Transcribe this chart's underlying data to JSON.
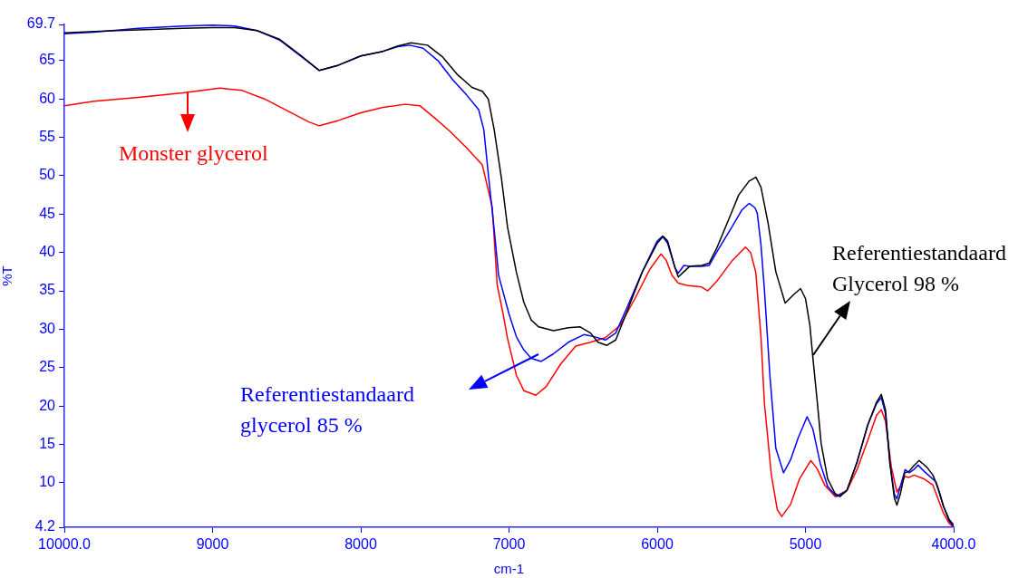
{
  "chart_data": {
    "type": "line",
    "xlabel": "cm-1",
    "ylabel": "%T",
    "xlim": [
      10000,
      4000
    ],
    "xticks": [
      {
        "value": 10000,
        "label": "10000.0"
      },
      9000,
      8000,
      7000,
      6000,
      5000,
      {
        "value": 4000,
        "label": "4000.0"
      }
    ],
    "ylim": [
      4.2,
      69.7
    ],
    "yticks": [
      4.2,
      10,
      15,
      20,
      25,
      30,
      35,
      40,
      45,
      50,
      55,
      60,
      65,
      69.7
    ],
    "series": [
      {
        "name": "Referentiestandaard Glycerol 98 %",
        "color": "#000000",
        "x": [
          10000,
          9800,
          9500,
          9200,
          9000,
          8850,
          8700,
          8550,
          8400,
          8280,
          8150,
          8000,
          7850,
          7750,
          7660,
          7550,
          7450,
          7350,
          7250,
          7180,
          7140,
          7100,
          7050,
          7010,
          6950,
          6900,
          6850,
          6800,
          6700,
          6600,
          6520,
          6450,
          6400,
          6340,
          6280,
          6200,
          6100,
          6000,
          5960,
          5930,
          5880,
          5858,
          5820,
          5780,
          5700,
          5650,
          5600,
          5509,
          5450,
          5380,
          5334,
          5300,
          5252,
          5200,
          5137,
          5080,
          5033,
          5000,
          4970,
          4952,
          4920,
          4894,
          4850,
          4800,
          4768,
          4720,
          4650,
          4580,
          4520,
          4488,
          4460,
          4430,
          4400,
          4383,
          4360,
          4330,
          4300,
          4270,
          4233,
          4180,
          4140,
          4100,
          4070,
          4030,
          4000
        ],
        "values": [
          68.6,
          68.8,
          69.0,
          69.2,
          69.3,
          69.3,
          68.9,
          67.8,
          65.6,
          63.7,
          64.4,
          65.6,
          66.2,
          66.9,
          67.3,
          67.0,
          65.5,
          63.2,
          61.5,
          61.0,
          60.0,
          56.0,
          49.5,
          43.3,
          37.4,
          33.5,
          31.2,
          30.3,
          29.8,
          30.2,
          30.3,
          29.5,
          28.3,
          27.9,
          28.6,
          32.5,
          37.5,
          41.2,
          42.1,
          41.5,
          38.0,
          36.8,
          37.5,
          38.2,
          38.3,
          38.6,
          40.5,
          44.7,
          47.5,
          49.3,
          49.8,
          48.5,
          43.8,
          37.5,
          33.4,
          34.5,
          35.3,
          34.0,
          30.5,
          26.7,
          20.5,
          15.1,
          10.5,
          8.6,
          8.2,
          9.0,
          12.8,
          17.5,
          20.5,
          21.5,
          19.5,
          12.5,
          8.0,
          7.1,
          8.5,
          11.3,
          11.5,
          12.2,
          12.9,
          12.0,
          11.0,
          9.0,
          7.0,
          5.2,
          4.5
        ]
      },
      {
        "name": "Referentiestandaard glycerol 85 %",
        "color": "#0000ff",
        "x": [
          10000,
          9800,
          9500,
          9200,
          9000,
          8850,
          8700,
          8550,
          8400,
          8280,
          8150,
          8000,
          7850,
          7750,
          7670,
          7580,
          7480,
          7380,
          7290,
          7205,
          7170,
          7137,
          7100,
          7070,
          7000,
          6950,
          6900,
          6850,
          6783,
          6700,
          6600,
          6495,
          6420,
          6350,
          6280,
          6200,
          6100,
          6000,
          5965,
          5930,
          5880,
          5858,
          5820,
          5780,
          5700,
          5650,
          5600,
          5500,
          5430,
          5380,
          5340,
          5325,
          5300,
          5277,
          5240,
          5200,
          5148,
          5100,
          5050,
          4989,
          4950,
          4900,
          4850,
          4789,
          4720,
          4650,
          4580,
          4520,
          4488,
          4460,
          4430,
          4400,
          4383,
          4360,
          4328,
          4300,
          4270,
          4240,
          4200,
          4119,
          4070,
          4030,
          4000
        ],
        "values": [
          68.5,
          68.7,
          69.2,
          69.5,
          69.6,
          69.5,
          68.9,
          67.7,
          65.5,
          63.7,
          64.4,
          65.6,
          66.2,
          66.8,
          67.0,
          66.6,
          65.0,
          62.5,
          60.6,
          58.6,
          56.0,
          49.7,
          43.0,
          37.0,
          32.0,
          29.0,
          27.3,
          26.2,
          25.8,
          26.8,
          28.3,
          29.3,
          29.0,
          28.6,
          29.5,
          33.0,
          37.5,
          41.5,
          42.1,
          41.2,
          38.0,
          37.3,
          38.3,
          38.2,
          38.2,
          38.3,
          40.0,
          43.2,
          45.5,
          46.4,
          45.8,
          45.1,
          41.0,
          35.2,
          24.0,
          14.5,
          11.3,
          13.0,
          15.8,
          18.6,
          17.0,
          12.5,
          9.5,
          8.2,
          9.0,
          12.8,
          17.5,
          20.3,
          21.1,
          19.0,
          12.5,
          8.5,
          7.9,
          9.5,
          11.7,
          11.3,
          11.7,
          12.3,
          11.5,
          10.1,
          7.0,
          5.0,
          4.3
        ]
      },
      {
        "name": "Monster glycerol",
        "color": "#ff0000",
        "x": [
          10000,
          9800,
          9500,
          9200,
          9000,
          8950,
          8800,
          8650,
          8500,
          8350,
          8280,
          8150,
          8000,
          7850,
          7700,
          7600,
          7500,
          7400,
          7290,
          7180,
          7113,
          7080,
          7040,
          7010,
          6950,
          6900,
          6819,
          6750,
          6650,
          6550,
          6450,
          6350,
          6250,
          6150,
          6050,
          5975,
          5940,
          5900,
          5858,
          5800,
          5700,
          5659,
          5600,
          5500,
          5405,
          5370,
          5335,
          5300,
          5277,
          5230,
          5190,
          5160,
          5100,
          5040,
          4964,
          4920,
          4870,
          4800,
          4720,
          4650,
          4580,
          4520,
          4488,
          4460,
          4420,
          4383,
          4360,
          4330,
          4300,
          4267,
          4200,
          4140,
          4070,
          4030,
          4000
        ],
        "values": [
          59.1,
          59.7,
          60.2,
          60.8,
          61.3,
          61.4,
          61.1,
          60.0,
          58.5,
          57.0,
          56.5,
          57.2,
          58.2,
          58.9,
          59.3,
          59.1,
          57.5,
          55.8,
          53.7,
          51.4,
          45.9,
          35.8,
          32.0,
          28.8,
          24.0,
          22.0,
          21.4,
          22.5,
          25.5,
          27.8,
          28.3,
          28.9,
          30.5,
          34.0,
          37.8,
          39.8,
          39.0,
          37.0,
          36.0,
          35.7,
          35.5,
          35.0,
          36.2,
          38.8,
          40.7,
          40.0,
          37.4,
          29.0,
          20.4,
          11.0,
          6.5,
          5.6,
          7.2,
          10.5,
          12.9,
          11.8,
          9.7,
          8.2,
          9.0,
          11.8,
          15.5,
          18.8,
          19.5,
          18.0,
          12.0,
          8.8,
          9.5,
          10.8,
          10.7,
          11.0,
          10.5,
          9.7,
          6.1,
          4.7,
          4.2
        ]
      }
    ]
  }
}
